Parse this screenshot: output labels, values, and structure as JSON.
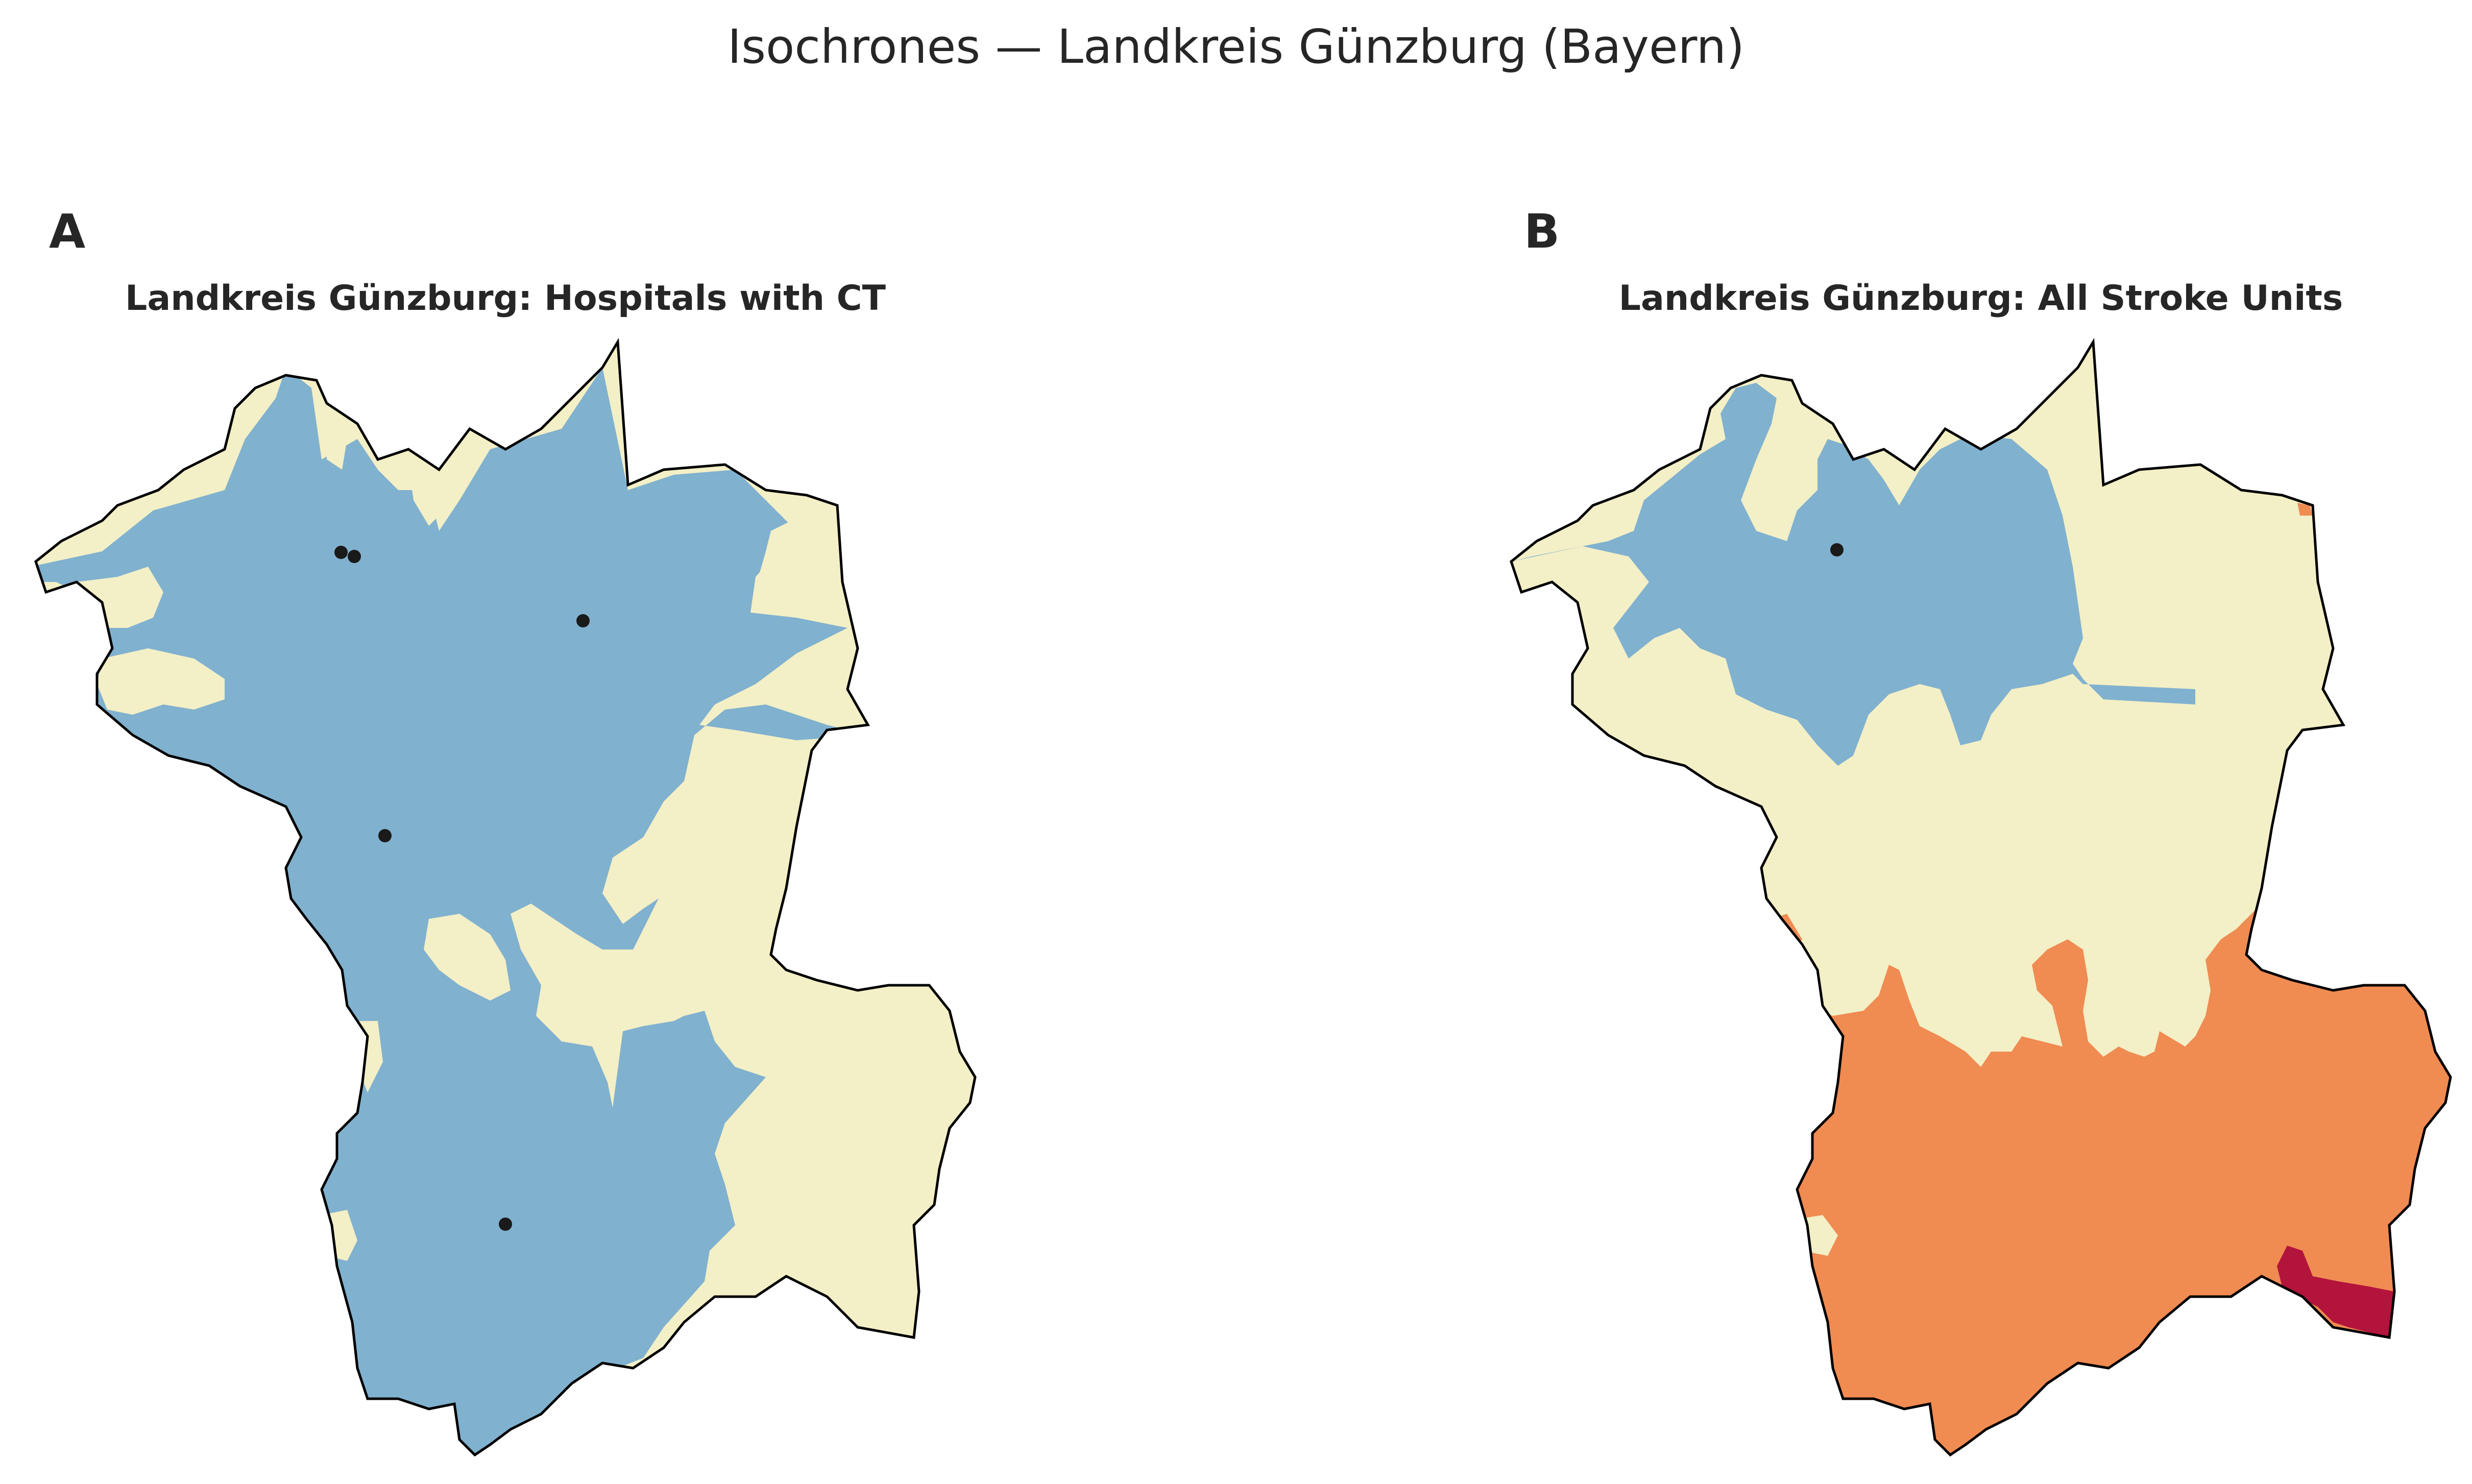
{
  "figure": {
    "title": "Isochrones — Landkreis Günzburg (Bayern)"
  },
  "panels": [
    {
      "letter": "A",
      "title": "Landkreis Günzburg: Hospitals with CT",
      "marker_count": 5
    },
    {
      "letter": "B",
      "title": "Landkreis Günzburg: All Stroke Units",
      "marker_count": 1
    }
  ],
  "colors": {
    "background_zone": "#f3efc6",
    "zone_blue": "#80b1cf",
    "zone_orange": "#f08b52",
    "zone_red": "#b3143c",
    "border": "#000000",
    "marker": "#1a1a1a"
  }
}
